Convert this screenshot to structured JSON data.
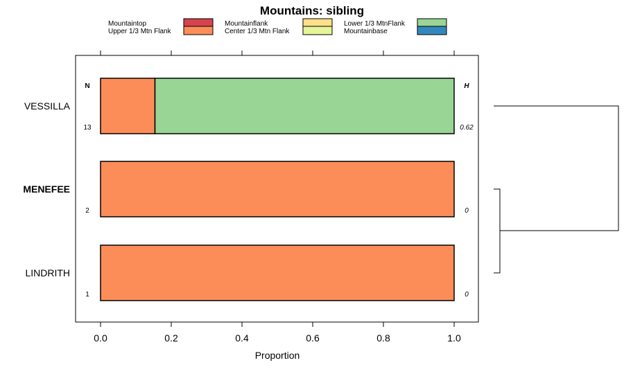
{
  "chart_data": {
    "type": "bar",
    "orientation": "horizontal",
    "stacked": true,
    "title": "Mountains: sibling",
    "xlabel": "Proportion",
    "xlim": [
      -0.07,
      1.07
    ],
    "xticks": [
      "0.0",
      "0.2",
      "0.4",
      "0.6",
      "0.8",
      "1.0"
    ],
    "xtick_values": [
      0,
      0.2,
      0.4,
      0.6,
      0.8,
      1.0
    ],
    "grid": false,
    "legend_position": "top",
    "legend": [
      {
        "name": "Mountaintop",
        "color": "#d7424f"
      },
      {
        "name": "Upper 1/3 Mtn Flank",
        "color": "#fc8d59"
      },
      {
        "name": "Mountainflank",
        "color": "#fee08b"
      },
      {
        "name": "Center 1/3 Mtn Flank",
        "color": "#e6f598"
      },
      {
        "name": "Lower 1/3 MtnFlank",
        "color": "#99d594"
      },
      {
        "name": "Mountainbase",
        "color": "#3288bd"
      }
    ],
    "column_headers": {
      "n": "N",
      "h": "H"
    },
    "categories": [
      "VESSILLA",
      "MENEFEE",
      "LINDRITH"
    ],
    "highlighted_category": "MENEFEE",
    "n_values": [
      "13",
      "2",
      "1"
    ],
    "h_values": [
      "0.62",
      "0",
      "0"
    ],
    "series": [
      {
        "name": "Upper 1/3 Mtn Flank",
        "color": "#fc8d59",
        "values": [
          0.154,
          1.0,
          1.0
        ]
      },
      {
        "name": "Lower 1/3 MtnFlank",
        "color": "#99d594",
        "values": [
          0.846,
          0,
          0
        ]
      }
    ],
    "dendrogram": "MENEFEE and LINDRITH cluster first, then join VESSILLA"
  }
}
